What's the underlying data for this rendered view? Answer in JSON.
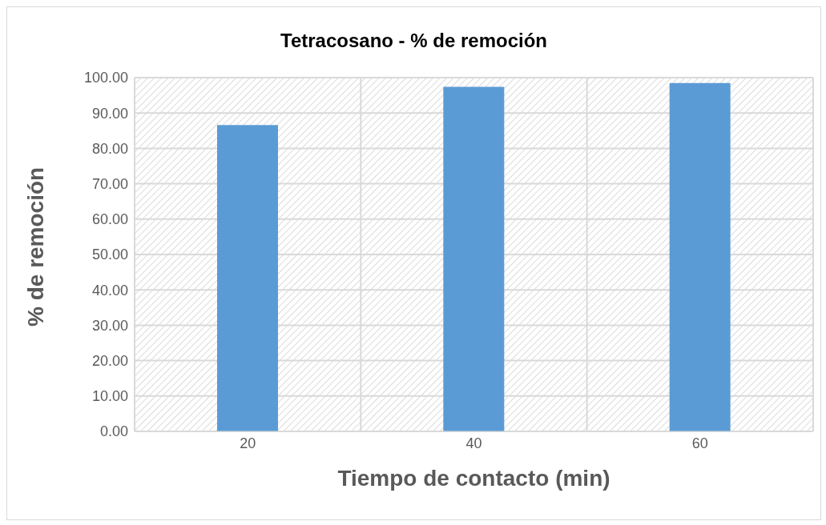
{
  "chart_data": {
    "type": "bar",
    "title": "Tetracosano - % de remoción",
    "xlabel": "Tiempo de contacto (min)",
    "ylabel": "% de remoción",
    "categories": [
      "20",
      "40",
      "60"
    ],
    "values": [
      86.6,
      97.4,
      98.5
    ],
    "color": "#5b9bd5",
    "ylim": [
      0,
      100
    ],
    "yticks": [
      {
        "value": 0,
        "label": "0.00"
      },
      {
        "value": 10,
        "label": "10.00"
      },
      {
        "value": 20,
        "label": "20.00"
      },
      {
        "value": 30,
        "label": "30.00"
      },
      {
        "value": 40,
        "label": "40.00"
      },
      {
        "value": 50,
        "label": "50.00"
      },
      {
        "value": 60,
        "label": "60.00"
      },
      {
        "value": 70,
        "label": "70.00"
      },
      {
        "value": 80,
        "label": "80.00"
      },
      {
        "value": 90,
        "label": "90.00"
      },
      {
        "value": 100,
        "label": "100.00"
      }
    ],
    "grid": true
  }
}
